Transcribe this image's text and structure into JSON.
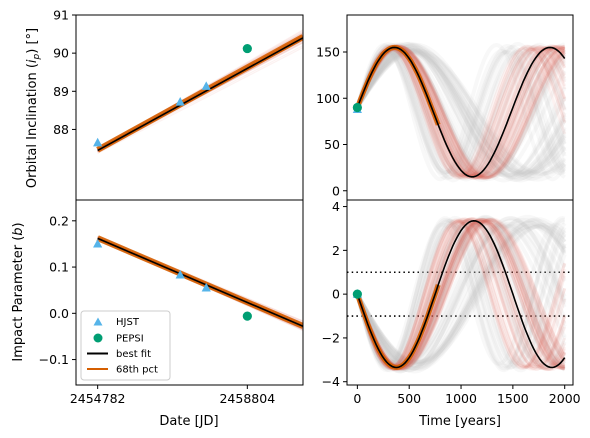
{
  "colors": {
    "hjst": "#56b4e9",
    "pepsi": "#009e73",
    "best_fit": "#000000",
    "pct68": "#d55e00",
    "draws": "#d8584a",
    "faint_draws": "#c8c8c8"
  },
  "legend": {
    "items": [
      {
        "label": "HJST",
        "marker": "triangle",
        "color": "#56b4e9"
      },
      {
        "label": "PEPSI",
        "marker": "circle",
        "color": "#009e73"
      },
      {
        "label": "best fit",
        "marker": "line",
        "color": "#000000"
      },
      {
        "label": "68th pct",
        "marker": "line",
        "color": "#d55e00"
      }
    ]
  },
  "chart_data": [
    {
      "type": "line",
      "panel": "top-left",
      "ylabel": "Orbital Inclination ($i_p$) [°]",
      "xlim": [
        2454200,
        2460300
      ],
      "ylim": [
        86.15,
        91.0
      ],
      "yticks": [
        88,
        89,
        90,
        91
      ],
      "ytick_labels": [
        "88",
        "89",
        "90",
        "91"
      ],
      "series": [
        {
          "name": "HJST",
          "kind": "scatter",
          "marker": "triangle",
          "x": [
            2454782,
            2457000,
            2457700
          ],
          "y": [
            87.65,
            88.72,
            89.13
          ]
        },
        {
          "name": "PEPSI",
          "kind": "scatter",
          "marker": "circle",
          "x": [
            2458804
          ],
          "y": [
            90.12
          ]
        },
        {
          "name": "best fit",
          "kind": "line",
          "x": [
            2454782,
            2460300
          ],
          "y": [
            87.45,
            90.4
          ]
        },
        {
          "name": "68th pct",
          "kind": "band",
          "x": [
            2454782,
            2460300
          ],
          "y_lo": [
            87.35,
            90.3
          ],
          "y_hi": [
            87.58,
            90.55
          ]
        }
      ]
    },
    {
      "type": "line",
      "panel": "top-right",
      "xlim": [
        -100,
        2080
      ],
      "ylim": [
        -10,
        190
      ],
      "yticks": [
        0,
        50,
        100,
        150
      ],
      "ytick_labels": [
        "0",
        "50",
        "100",
        "150"
      ],
      "series": [
        {
          "name": "HJST",
          "kind": "scatter",
          "marker": "triangle",
          "x": [
            0
          ],
          "y": [
            88
          ]
        },
        {
          "name": "PEPSI",
          "kind": "scatter",
          "marker": "circle",
          "x": [
            0
          ],
          "y": [
            90
          ]
        },
        {
          "name": "best fit",
          "kind": "sinusoid",
          "center": 85,
          "amplitude": 70,
          "period": 1500,
          "x0": 0,
          "y0": 90,
          "rising": true
        }
      ]
    },
    {
      "type": "line",
      "panel": "bottom-left",
      "xlabel": "Date [JD]",
      "ylabel": "Impact Parameter ($b$)",
      "xlim": [
        2454200,
        2460300
      ],
      "ylim": [
        -0.155,
        0.245
      ],
      "xticks": [
        2454782,
        2458804
      ],
      "xtick_labels": [
        "2454782",
        "2458804"
      ],
      "yticks": [
        -0.1,
        0.0,
        0.1,
        0.2
      ],
      "ytick_labels": [
        "−0.1",
        "0.0",
        "0.1",
        "0.2"
      ],
      "series": [
        {
          "name": "HJST",
          "kind": "scatter",
          "marker": "triangle",
          "x": [
            2454782,
            2457000,
            2457700
          ],
          "y": [
            0.15,
            0.083,
            0.055
          ]
        },
        {
          "name": "PEPSI",
          "kind": "scatter",
          "marker": "circle",
          "x": [
            2458804
          ],
          "y": [
            -0.006
          ]
        },
        {
          "name": "best fit",
          "kind": "line",
          "x": [
            2454782,
            2460300
          ],
          "y": [
            0.162,
            -0.028
          ]
        },
        {
          "name": "68th pct",
          "kind": "band",
          "x": [
            2454782,
            2460300
          ],
          "y_lo": [
            0.155,
            -0.035
          ],
          "y_hi": [
            0.17,
            -0.02
          ]
        }
      ]
    },
    {
      "type": "line",
      "panel": "bottom-right",
      "xlabel": "Time [years]",
      "xlim": [
        -100,
        2080
      ],
      "ylim": [
        -4.15,
        4.3
      ],
      "xticks": [
        0,
        500,
        1000,
        1500,
        2000
      ],
      "xtick_labels": [
        "0",
        "500",
        "1000",
        "1500",
        "2000"
      ],
      "yticks": [
        -4,
        -2,
        0,
        2,
        4
      ],
      "ytick_labels": [
        "−4",
        "−2",
        "0",
        "2",
        "4"
      ],
      "hlines": [
        1,
        -1
      ],
      "series": [
        {
          "name": "HJST",
          "kind": "scatter",
          "marker": "triangle",
          "x": [
            0
          ],
          "y": [
            0.0
          ]
        },
        {
          "name": "PEPSI",
          "kind": "scatter",
          "marker": "circle",
          "x": [
            0
          ],
          "y": [
            0.0
          ]
        },
        {
          "name": "best fit",
          "kind": "sinusoid",
          "center": 0,
          "amplitude": 3.35,
          "period": 1500,
          "x0": 0,
          "y0": 0,
          "rising": false
        }
      ]
    }
  ]
}
